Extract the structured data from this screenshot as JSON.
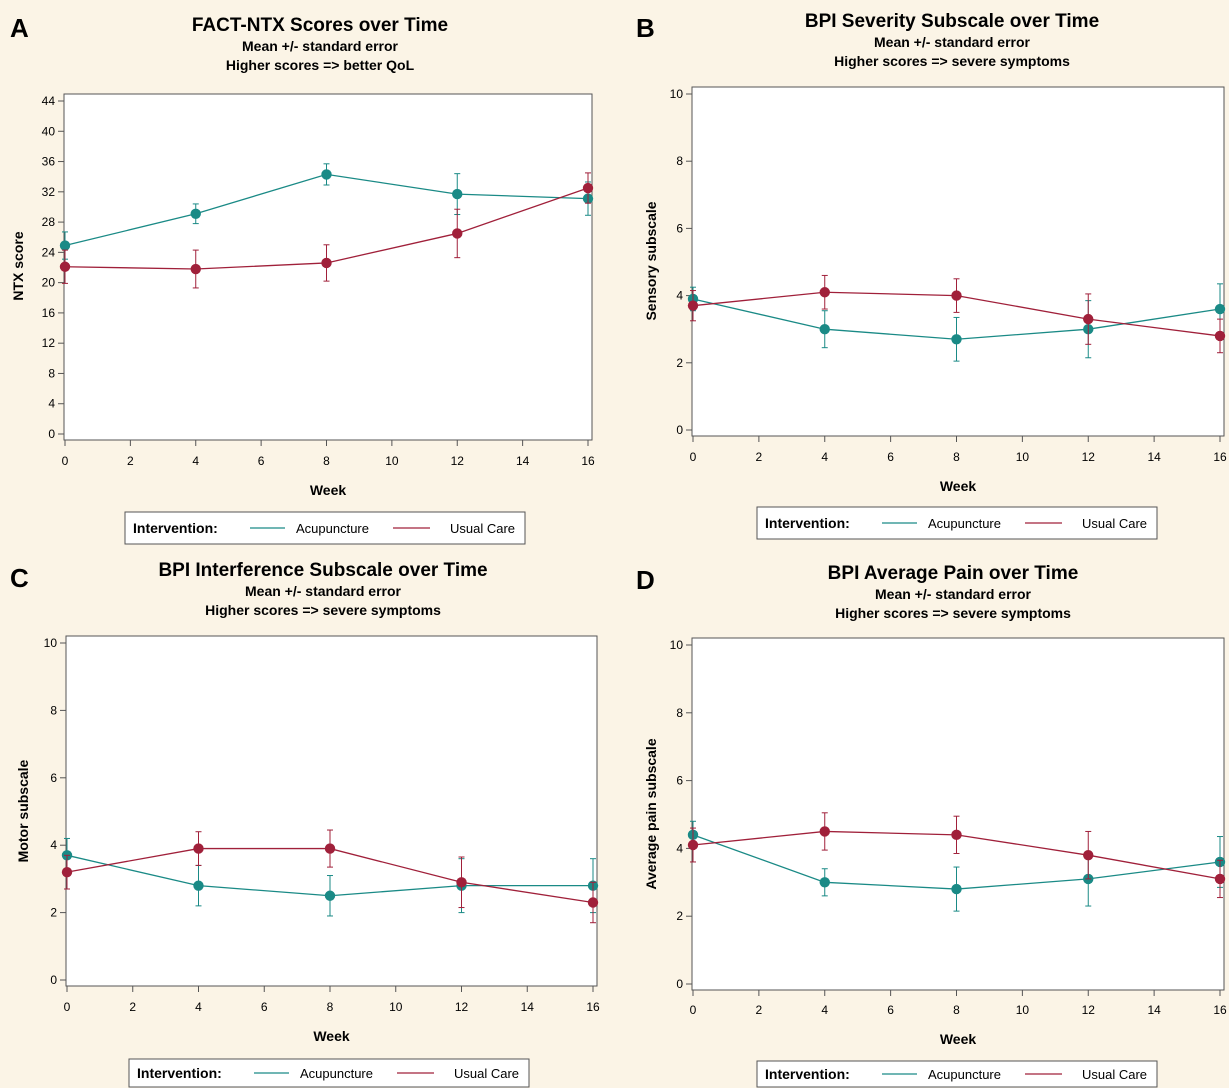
{
  "colors": {
    "acupuncture": "#1a8a86",
    "usual_care": "#a0203a",
    "background": "#fbf4e6",
    "plot_bg": "#ffffff",
    "axis": "#555555"
  },
  "chart_data": [
    {
      "panel_label": "A",
      "type": "line",
      "title": "FACT-NTX Scores over Time",
      "subtitle1": "Mean +/- standard error",
      "subtitle2": "Higher scores => better QoL",
      "xlabel": "Week",
      "ylabel": "NTX score",
      "xlim": [
        0,
        16
      ],
      "ylim": [
        0,
        44
      ],
      "xticks": [
        0,
        2,
        4,
        6,
        8,
        10,
        12,
        14,
        16
      ],
      "yticks": [
        0,
        4,
        8,
        12,
        16,
        20,
        24,
        28,
        32,
        36,
        40,
        44
      ],
      "legend": {
        "title": "Intervention:",
        "placement": "bottom"
      },
      "series": [
        {
          "name": "Acupuncture",
          "color_key": "acupuncture",
          "x": [
            0,
            4,
            8,
            12,
            16
          ],
          "y": [
            24.9,
            29.1,
            34.3,
            31.7,
            31.1
          ],
          "err": [
            1.8,
            1.3,
            1.4,
            2.7,
            2.2
          ]
        },
        {
          "name": "Usual Care",
          "color_key": "usual_care",
          "x": [
            0,
            4,
            8,
            12,
            16
          ],
          "y": [
            22.1,
            21.8,
            22.6,
            26.5,
            32.5
          ],
          "err": [
            2.2,
            2.5,
            2.4,
            3.2,
            2.0
          ]
        }
      ]
    },
    {
      "panel_label": "B",
      "type": "line",
      "title": "BPI Severity Subscale over Time",
      "subtitle1": "Mean +/- standard error",
      "subtitle2": "Higher scores => severe symptoms",
      "xlabel": "Week",
      "ylabel": "Sensory subscale",
      "xlim": [
        0,
        16
      ],
      "ylim": [
        0,
        10
      ],
      "xticks": [
        0,
        2,
        4,
        6,
        8,
        10,
        12,
        14,
        16
      ],
      "yticks": [
        0,
        2,
        4,
        6,
        8,
        10
      ],
      "legend": {
        "title": "Intervention:",
        "placement": "bottom"
      },
      "series": [
        {
          "name": "Acupuncture",
          "color_key": "acupuncture",
          "x": [
            0,
            4,
            8,
            12,
            16
          ],
          "y": [
            3.9,
            3.0,
            2.7,
            3.0,
            3.6
          ],
          "err": [
            0.35,
            0.55,
            0.65,
            0.85,
            0.75
          ]
        },
        {
          "name": "Usual Care",
          "color_key": "usual_care",
          "x": [
            0,
            4,
            8,
            12,
            16
          ],
          "y": [
            3.7,
            4.1,
            4.0,
            3.3,
            2.8
          ],
          "err": [
            0.45,
            0.5,
            0.5,
            0.75,
            0.5
          ]
        }
      ]
    },
    {
      "panel_label": "C",
      "type": "line",
      "title": "BPI Interference Subscale over Time",
      "subtitle1": "Mean +/- standard error",
      "subtitle2": "Higher scores => severe symptoms",
      "xlabel": "Week",
      "ylabel": "Motor subscale",
      "xlim": [
        0,
        16
      ],
      "ylim": [
        0,
        10
      ],
      "xticks": [
        0,
        2,
        4,
        6,
        8,
        10,
        12,
        14,
        16
      ],
      "yticks": [
        0,
        2,
        4,
        6,
        8,
        10
      ],
      "legend": {
        "title": "Intervention:",
        "placement": "bottom"
      },
      "series": [
        {
          "name": "Acupuncture",
          "color_key": "acupuncture",
          "x": [
            0,
            4,
            8,
            12,
            16
          ],
          "y": [
            3.7,
            2.8,
            2.5,
            2.8,
            2.8
          ],
          "err": [
            0.5,
            0.6,
            0.6,
            0.8,
            0.8
          ]
        },
        {
          "name": "Usual Care",
          "color_key": "usual_care",
          "x": [
            0,
            4,
            8,
            12,
            16
          ],
          "y": [
            3.2,
            3.9,
            3.9,
            2.9,
            2.3
          ],
          "err": [
            0.5,
            0.5,
            0.55,
            0.75,
            0.6
          ]
        }
      ]
    },
    {
      "panel_label": "D",
      "type": "line",
      "title": "BPI Average Pain over Time",
      "subtitle1": "Mean +/- standard error",
      "subtitle2": "Higher scores => severe symptoms",
      "xlabel": "Week",
      "ylabel": "Average pain subscale",
      "xlim": [
        0,
        16
      ],
      "ylim": [
        0,
        10
      ],
      "xticks": [
        0,
        2,
        4,
        6,
        8,
        10,
        12,
        14,
        16
      ],
      "yticks": [
        0,
        2,
        4,
        6,
        8,
        10
      ],
      "legend": {
        "title": "Intervention:",
        "placement": "bottom"
      },
      "series": [
        {
          "name": "Acupuncture",
          "color_key": "acupuncture",
          "x": [
            0,
            4,
            8,
            12,
            16
          ],
          "y": [
            4.4,
            3.0,
            2.8,
            3.1,
            3.6
          ],
          "err": [
            0.4,
            0.4,
            0.65,
            0.8,
            0.75
          ]
        },
        {
          "name": "Usual Care",
          "color_key": "usual_care",
          "x": [
            0,
            4,
            8,
            12,
            16
          ],
          "y": [
            4.1,
            4.5,
            4.4,
            3.8,
            3.1
          ],
          "err": [
            0.5,
            0.55,
            0.55,
            0.7,
            0.55
          ]
        }
      ]
    }
  ]
}
